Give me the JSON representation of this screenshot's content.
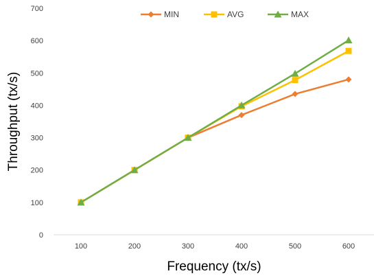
{
  "chart_data": {
    "type": "line",
    "title": "",
    "xlabel": "Frequency (tx/s)",
    "ylabel": "Throughput (tx/s)",
    "categories": [
      "100",
      "200",
      "300",
      "400",
      "500",
      "600"
    ],
    "ylim": [
      0,
      700
    ],
    "yticks": [
      "0",
      "100",
      "200",
      "300",
      "400",
      "500",
      "600",
      "700"
    ],
    "grid": false,
    "legend_position": "top",
    "series": [
      {
        "name": "MIN",
        "color": "#ED7D31",
        "marker": "diamond",
        "values": [
          100,
          200,
          300,
          370,
          435,
          480
        ]
      },
      {
        "name": "AVG",
        "color": "#FFC000",
        "marker": "square",
        "values": [
          100,
          200,
          300,
          397,
          478,
          568
        ]
      },
      {
        "name": "MAX",
        "color": "#70AD47",
        "marker": "triangle",
        "values": [
          100,
          200,
          300,
          400,
          498,
          601
        ]
      }
    ]
  }
}
